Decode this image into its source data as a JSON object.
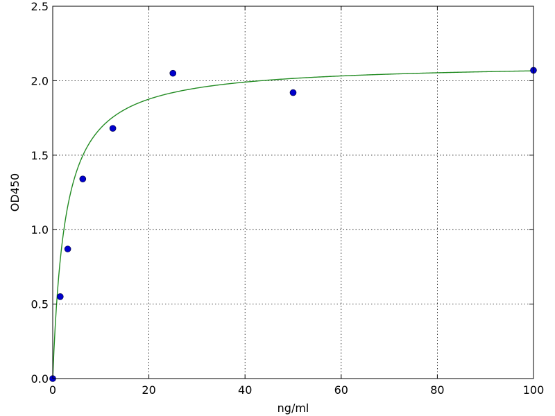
{
  "chart_data": {
    "type": "scatter",
    "title": "",
    "xlabel": "ng/ml",
    "ylabel": "OD450",
    "xlim": [
      0,
      100
    ],
    "ylim": [
      0,
      2.5
    ],
    "grid": true,
    "grid_style": "dotted",
    "x_ticks": [
      0,
      20,
      40,
      60,
      80,
      100
    ],
    "x_tick_labels": [
      "0",
      "20",
      "40",
      "60",
      "80",
      "100"
    ],
    "y_ticks": [
      0,
      0.5,
      1.0,
      1.5,
      2.0,
      2.5
    ],
    "y_tick_labels": [
      "0.0",
      "0.5",
      "1.0",
      "1.5",
      "2.0",
      "2.5"
    ],
    "series": [
      {
        "type": "scatter",
        "color": "#0000cc",
        "x": [
          0,
          1.56,
          3.12,
          6.25,
          12.5,
          25,
          50,
          100
        ],
        "y": [
          0.0,
          0.55,
          0.87,
          1.34,
          1.68,
          2.05,
          1.92,
          2.07
        ]
      },
      {
        "type": "line",
        "color": "#228b22",
        "fit": "hyperbolic",
        "bmax": 2.12,
        "kd": 2.6
      }
    ]
  }
}
